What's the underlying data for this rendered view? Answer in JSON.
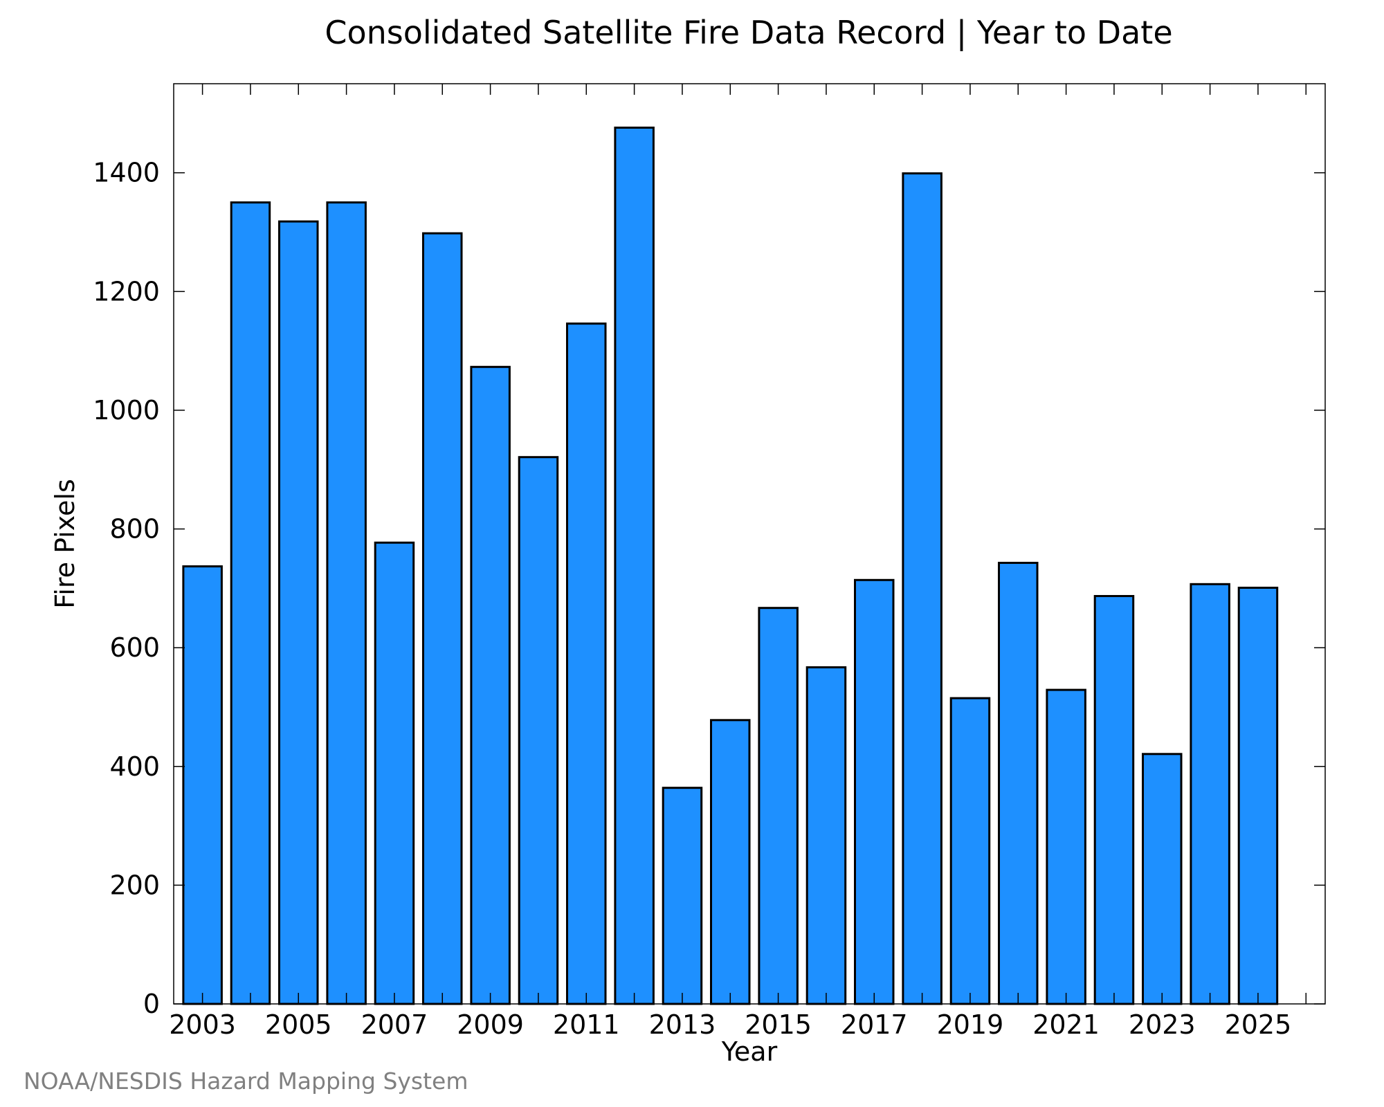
{
  "chart_data": {
    "type": "bar",
    "title": "Consolidated Satellite Fire Data Record | Year to Date",
    "xlabel": "Year",
    "ylabel": "Fire Pixels",
    "categories": [
      2003,
      2004,
      2005,
      2006,
      2007,
      2008,
      2009,
      2010,
      2011,
      2012,
      2013,
      2014,
      2015,
      2016,
      2017,
      2018,
      2019,
      2020,
      2021,
      2022,
      2023,
      2024,
      2025
    ],
    "values": [
      737,
      1350,
      1318,
      1350,
      777,
      1298,
      1073,
      921,
      1146,
      1476,
      364,
      478,
      667,
      567,
      714,
      1399,
      515,
      743,
      529,
      687,
      421,
      707,
      701
    ],
    "x_tick_labels": [
      "2003",
      "2005",
      "2007",
      "2009",
      "2011",
      "2013",
      "2015",
      "2017",
      "2019",
      "2021",
      "2023",
      "2025"
    ],
    "y_ticks": [
      0,
      200,
      400,
      600,
      800,
      1000,
      1200,
      1400
    ],
    "ylim": [
      0,
      1550
    ],
    "xlim": [
      2002.4,
      2026.4
    ],
    "bar_width_years": 0.8,
    "bar_color": "#1e90ff",
    "grid": false
  },
  "credit": "NOAA/NESDIS Hazard Mapping System"
}
